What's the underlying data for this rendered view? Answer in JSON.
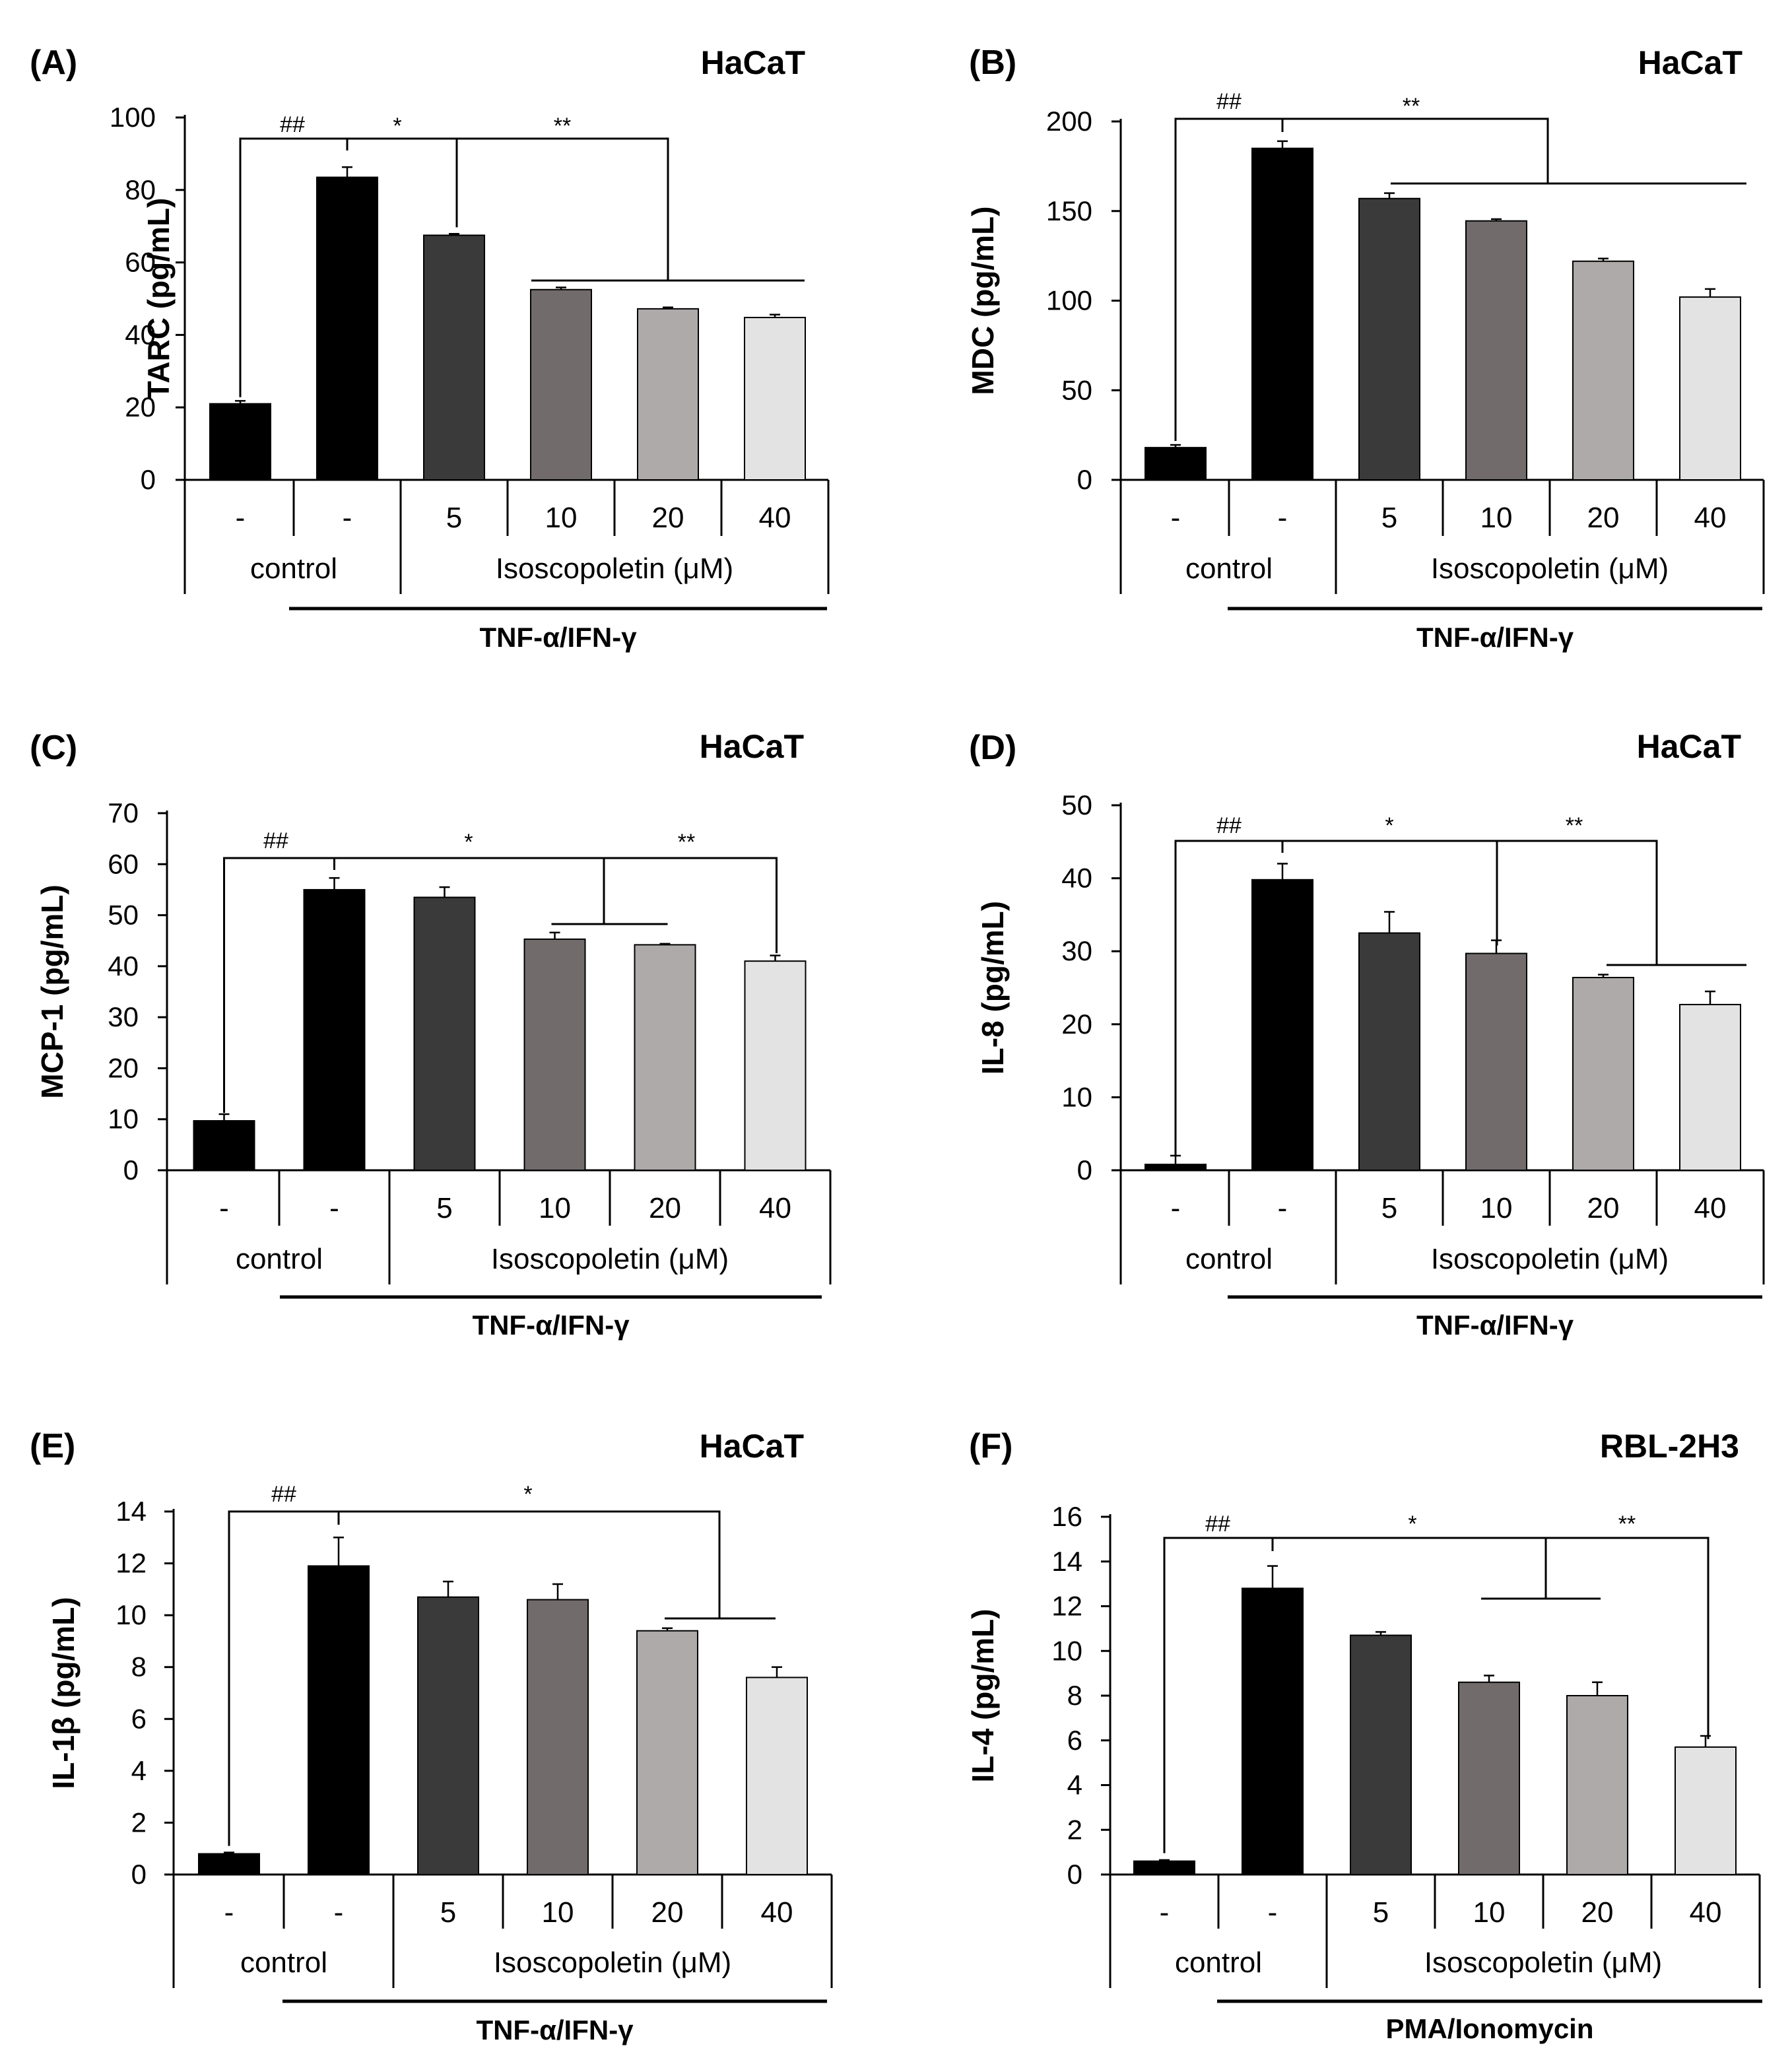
{
  "bar_colors": [
    "#000000",
    "#000000",
    "#3a3a3a",
    "#716c6b",
    "#aeaaa9",
    "#e3e3e3"
  ],
  "chart_data": [
    {
      "type": "bar",
      "panel": "(A)",
      "cell_line": "HaCaT",
      "ylabel": "TARC (pg/mL)",
      "ylim": [
        0,
        100
      ],
      "yticks": [
        0,
        20,
        40,
        60,
        80,
        100
      ],
      "categories": [
        "-",
        "-",
        "5",
        "10",
        "20",
        "40"
      ],
      "values": [
        21,
        83.5,
        67.5,
        52.5,
        47.2,
        44.8
      ],
      "errors": [
        0.8,
        2.8,
        0.4,
        0.6,
        0.4,
        0.8
      ],
      "group_labels": [
        "control",
        "Isoscopoletin (μM)"
      ],
      "treatment": "TNF-α/IFN-γ",
      "significance": [
        "##",
        "*",
        "**"
      ]
    },
    {
      "type": "bar",
      "panel": "(B)",
      "cell_line": "HaCaT",
      "ylabel": "MDC (pg/mL)",
      "ylim": [
        0,
        200
      ],
      "yticks": [
        0,
        50,
        100,
        150,
        200
      ],
      "categories": [
        "-",
        "-",
        "5",
        "10",
        "20",
        "40"
      ],
      "values": [
        18,
        185,
        157,
        144.5,
        122,
        102
      ],
      "errors": [
        1.5,
        4,
        3,
        1,
        1.5,
        4.5
      ],
      "group_labels": [
        "control",
        "Isoscopoletin (μM)"
      ],
      "treatment": "TNF-α/IFN-γ",
      "significance": [
        "##",
        "**"
      ]
    },
    {
      "type": "bar",
      "panel": "(C)",
      "cell_line": "HaCaT",
      "ylabel": "MCP-1 (pg/mL)",
      "ylim": [
        0,
        70
      ],
      "yticks": [
        0,
        10,
        20,
        30,
        40,
        50,
        60,
        70
      ],
      "categories": [
        "-",
        "-",
        "5",
        "10",
        "20",
        "40"
      ],
      "values": [
        9.7,
        55,
        53.5,
        45.3,
        44.2,
        41
      ],
      "errors": [
        1.3,
        2.3,
        2,
        1.3,
        0.2,
        1.1
      ],
      "group_labels": [
        "control",
        "Isoscopoletin (μM)"
      ],
      "treatment": "TNF-α/IFN-γ",
      "significance": [
        "##",
        "*",
        "**"
      ]
    },
    {
      "type": "bar",
      "panel": "(D)",
      "cell_line": "HaCaT",
      "ylabel": "IL-8 (pg/mL)",
      "ylim": [
        0,
        50
      ],
      "yticks": [
        0,
        10,
        20,
        30,
        40,
        50
      ],
      "categories": [
        "-",
        "-",
        "5",
        "10",
        "20",
        "40"
      ],
      "values": [
        0.8,
        39.8,
        32.5,
        29.7,
        26.4,
        22.7
      ],
      "errors": [
        1.2,
        2.2,
        2.9,
        1.8,
        0.4,
        1.8
      ],
      "group_labels": [
        "control",
        "Isoscopoletin (μM)"
      ],
      "treatment": "TNF-α/IFN-γ",
      "significance": [
        "##",
        "*",
        "**"
      ]
    },
    {
      "type": "bar",
      "panel": "(E)",
      "cell_line": "HaCaT",
      "ylabel": "IL-1β (pg/mL)",
      "ylim": [
        0,
        14
      ],
      "yticks": [
        0,
        2,
        4,
        6,
        8,
        10,
        12,
        14
      ],
      "categories": [
        "-",
        "-",
        "5",
        "10",
        "20",
        "40"
      ],
      "values": [
        0.8,
        11.9,
        10.7,
        10.6,
        9.4,
        7.6
      ],
      "errors": [
        0.05,
        1.1,
        0.6,
        0.6,
        0.1,
        0.4
      ],
      "group_labels": [
        "control",
        "Isoscopoletin (μM)"
      ],
      "treatment": "TNF-α/IFN-γ",
      "significance": [
        "##",
        "*"
      ]
    },
    {
      "type": "bar",
      "panel": "(F)",
      "cell_line": "RBL-2H3",
      "ylabel": "IL-4 (pg/mL)",
      "ylim": [
        0,
        16
      ],
      "yticks": [
        0,
        2,
        4,
        6,
        8,
        10,
        12,
        14,
        16
      ],
      "categories": [
        "-",
        "-",
        "5",
        "10",
        "20",
        "40"
      ],
      "values": [
        0.6,
        12.8,
        10.7,
        8.6,
        8.0,
        5.7
      ],
      "errors": [
        0.05,
        1.0,
        0.15,
        0.3,
        0.6,
        0.5
      ],
      "group_labels": [
        "control",
        "Isoscopoletin (μM)"
      ],
      "treatment": "PMA/Ionomycin",
      "significance": [
        "##",
        "*",
        "**"
      ]
    }
  ]
}
